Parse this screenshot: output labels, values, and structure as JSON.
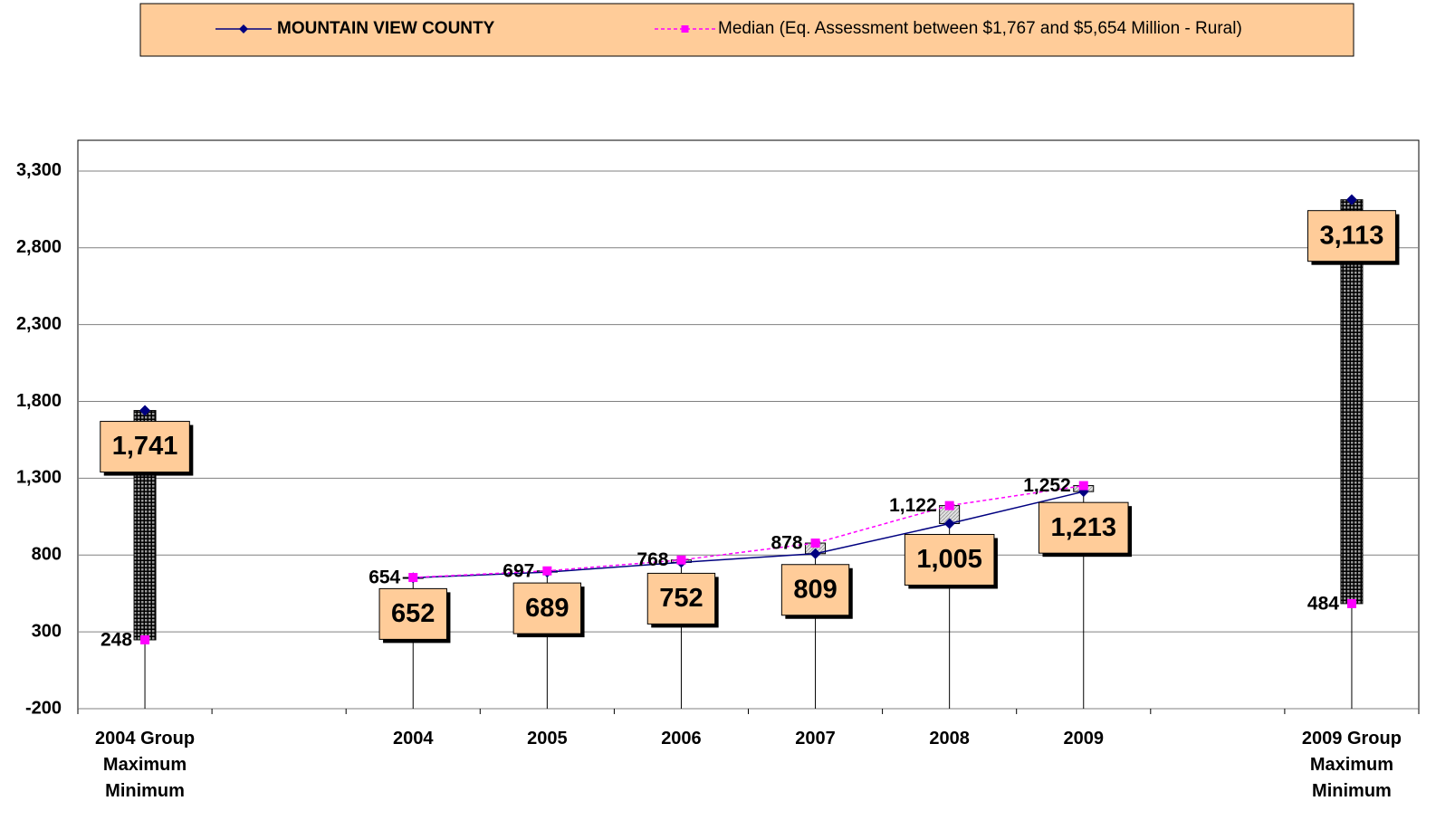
{
  "chart_data": {
    "type": "line",
    "categories": [
      "2004 Group\nMaximum\nMinimum",
      null,
      "2004",
      "2005",
      "2006",
      "2007",
      "2008",
      "2009",
      null,
      "2009 Group\nMaximum\nMinimum"
    ],
    "series": [
      {
        "name": "MOUNTAIN VIEW COUNTY",
        "color": "#000080",
        "marker": "diamond",
        "values": [
          1741,
          null,
          652,
          689,
          752,
          809,
          1005,
          1213,
          null,
          3113
        ],
        "value_labels": [
          "1,741",
          null,
          "652",
          "689",
          "752",
          "809",
          "1,005",
          "1,213",
          null,
          "3,113"
        ]
      },
      {
        "name": "Median (Eq. Assessment between $1,767 and $5,654 Million - Rural)",
        "color": "#FF00FF",
        "marker": "square",
        "dashed": true,
        "values": [
          248,
          null,
          654,
          697,
          768,
          878,
          1122,
          1252,
          null,
          484
        ],
        "value_labels": [
          "248",
          null,
          "654",
          "697",
          "768",
          "878",
          "1,122",
          "1,252",
          null,
          "484"
        ]
      }
    ],
    "ylim": [
      -200,
      3500
    ],
    "yticks": [
      -200,
      300,
      800,
      {
        "value": 1300,
        "label": "1,300"
      },
      {
        "value": 1800,
        "label": "1,800"
      },
      {
        "value": 2300,
        "label": "2,300"
      },
      {
        "value": 2800,
        "label": "2,800"
      },
      {
        "value": 3300,
        "label": "3,300"
      }
    ],
    "grid": true
  }
}
